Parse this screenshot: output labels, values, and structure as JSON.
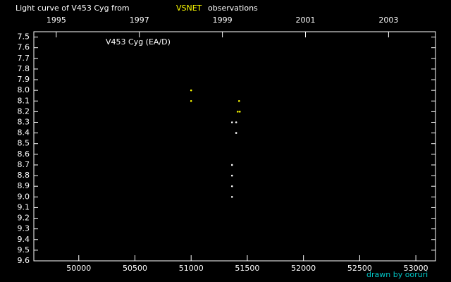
{
  "chart_data": {
    "type": "scatter",
    "title": "Light curve of V453 Cyg from",
    "title_highlight": "VSNET",
    "title_suffix": "observations",
    "annotation": "V453 Cyg (EA/D)",
    "credit": "drawn by ooruri",
    "xlim": [
      49600,
      53175
    ],
    "xticks": [
      50000,
      50500,
      51000,
      51500,
      52000,
      52500,
      53000
    ],
    "x2lim": [
      1994.46,
      2004.13
    ],
    "x2ticks": [
      1995,
      1997,
      1999,
      2001,
      2003
    ],
    "ylim": [
      9.6,
      7.45
    ],
    "yticks": [
      7.5,
      7.6,
      7.7,
      7.8,
      7.9,
      {
        "value": 8,
        "label": "8.0"
      },
      8.1,
      8.2,
      8.3,
      8.4,
      8.5,
      8.6,
      8.7,
      8.8,
      8.9,
      {
        "value": 9,
        "label": "9.0"
      },
      9.1,
      9.2,
      9.3,
      9.4,
      9.5,
      9.6
    ],
    "series": [
      {
        "color": "#ffff00",
        "x": [
          51000,
          51000,
          51427,
          51415,
          51433
        ],
        "values": [
          8.0,
          8.1,
          8.1,
          8.2,
          8.2
        ]
      },
      {
        "color": "#ffffff",
        "x": [
          51364,
          51401,
          51401,
          51364,
          51364,
          51364,
          51364
        ],
        "values": [
          8.3,
          8.3,
          8.4,
          8.7,
          8.8,
          8.9,
          9.0
        ]
      }
    ]
  }
}
